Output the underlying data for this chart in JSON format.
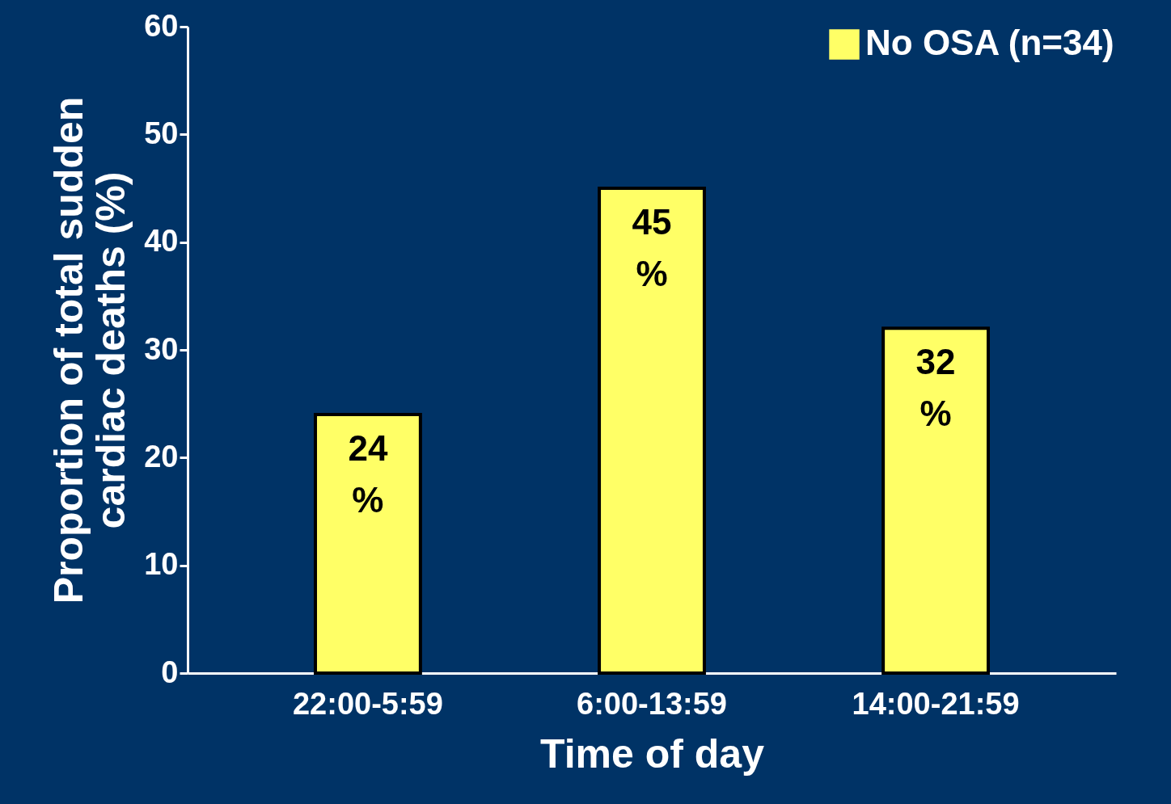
{
  "chart_data": {
    "type": "bar",
    "xlabel": "Time of day",
    "ylabel": "Proportion of total sudden cardiac deaths (%)",
    "categories": [
      "22:00-5:59",
      "6:00-13:59",
      "14:00-21:59"
    ],
    "series": [
      {
        "name": "No OSA (n=34)",
        "color": "#ffff66",
        "values": [
          24,
          45,
          32
        ],
        "value_labels": [
          "24 %",
          "45 %",
          "32 %"
        ]
      }
    ],
    "ylim": [
      0,
      60
    ],
    "yticks": [
      0,
      10,
      20,
      30,
      40,
      50,
      60
    ],
    "grid": false,
    "legend": "top right"
  }
}
